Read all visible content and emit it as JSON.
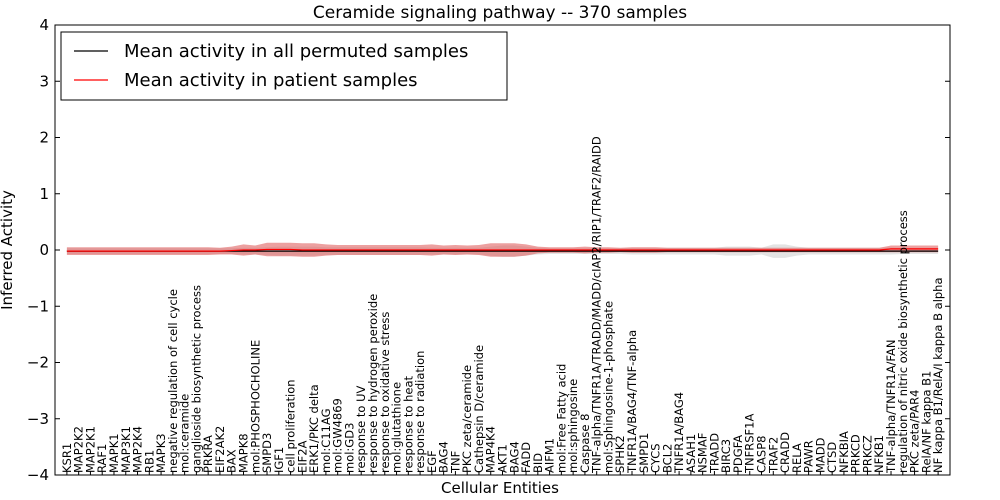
{
  "chart_data": {
    "type": "line",
    "title": "Ceramide signaling pathway -- 370 samples",
    "xlabel": "Cellular Entities",
    "ylabel": "Inferred Activity",
    "ylim": [
      -4,
      4
    ],
    "yticks": [
      "4",
      "3",
      "2",
      "1",
      "0",
      "−1",
      "−2",
      "−3",
      "−4"
    ],
    "legend_position": "top-left",
    "categories": [
      "KSR1",
      "MAP2K2",
      "MAP2K1",
      "RAF1",
      "MAPK1",
      "MAP3K1",
      "MAP2K4",
      "RB1",
      "MAPK3",
      "negative regulation of cell cycle",
      "mol:ceramide",
      "ganglioside biosynthetic process",
      "PRKRA",
      "EIF2AK2",
      "BAX",
      "MAPK8",
      "mol:PHOSPHOCHOLINE",
      "SMPD3",
      "IGF1",
      "cell proliferation",
      "EIF2A",
      "ERK1/PKC delta",
      "mol:C11AG",
      "mol:GW4869",
      "mol:GD3",
      "response to UV",
      "response to hydrogen peroxide",
      "response to oxidative stress",
      "mol:glutathione",
      "response to heat",
      "response to radiation",
      "EGF",
      "BAG4",
      "TNF",
      "PKC zeta/ceramide",
      "Cathepsin D/ceramide",
      "MAP4K4",
      "AKT1",
      "BAG4",
      "FADD",
      "BID",
      "AIFM1",
      "mol:Free Fatty acid",
      "mol:sphingosine",
      "Caspase 8",
      "TNF-alpha/TNFR1A/TRADD/MADD/cIAP2/RIP1/TRAF2/RAIDD",
      "mol:Sphingosine-1-phosphate",
      "SPHK2",
      "TNFR1A/BAG4/TNF-alpha",
      "SMPD1",
      "CYCS",
      "BCL2",
      "TNFR1A/BAG4",
      "ASAH1",
      "NSMAF",
      "TRADD",
      "BIRC3",
      "PDGFA",
      "TNFRSF1A",
      "CASP8",
      "TRAF2",
      "CRADD",
      "RELA",
      "PAWR",
      "MADD",
      "CTSD",
      "NFKBIA",
      "PRKCD",
      "PRKCZ",
      "NFKB1",
      "TNF-alpha/TNFR1A/FAN",
      "regulation of nitric oxide biosynthetic process",
      "PKC zeta/PAR4",
      "RelA/NF kappa B1",
      "NF kappa B1/RelA/I kappa B alpha"
    ],
    "series": [
      {
        "name": "Mean activity in all permuted samples",
        "color": "#000000",
        "values": [
          -0.02,
          -0.02,
          -0.02,
          -0.02,
          -0.02,
          -0.02,
          -0.02,
          -0.02,
          -0.02,
          -0.02,
          -0.02,
          -0.02,
          -0.02,
          -0.02,
          -0.02,
          -0.02,
          -0.02,
          -0.02,
          -0.02,
          -0.02,
          -0.02,
          -0.02,
          -0.02,
          -0.02,
          -0.02,
          -0.02,
          -0.02,
          -0.02,
          -0.02,
          -0.02,
          -0.02,
          -0.02,
          -0.02,
          -0.02,
          -0.02,
          -0.02,
          -0.02,
          -0.02,
          -0.02,
          -0.02,
          -0.02,
          -0.02,
          -0.02,
          -0.02,
          -0.02,
          -0.02,
          -0.02,
          -0.02,
          -0.02,
          -0.02,
          -0.02,
          -0.02,
          -0.02,
          -0.02,
          -0.02,
          -0.02,
          -0.02,
          -0.02,
          -0.02,
          -0.02,
          -0.02,
          -0.02,
          -0.02,
          -0.02,
          -0.02,
          -0.02,
          -0.02,
          -0.02,
          -0.02,
          -0.02,
          -0.02,
          -0.02,
          -0.02,
          -0.02,
          -0.02
        ],
        "spread": [
          0.05,
          0.05,
          0.05,
          0.05,
          0.05,
          0.05,
          0.05,
          0.05,
          0.05,
          0.05,
          0.05,
          0.05,
          0.05,
          0.05,
          0.05,
          0.06,
          0.06,
          0.07,
          0.08,
          0.08,
          0.08,
          0.08,
          0.07,
          0.07,
          0.07,
          0.07,
          0.07,
          0.07,
          0.07,
          0.07,
          0.07,
          0.06,
          0.06,
          0.06,
          0.06,
          0.06,
          0.08,
          0.1,
          0.1,
          0.08,
          0.06,
          0.05,
          0.05,
          0.05,
          0.05,
          0.05,
          0.05,
          0.05,
          0.06,
          0.06,
          0.06,
          0.06,
          0.06,
          0.06,
          0.06,
          0.06,
          0.08,
          0.08,
          0.08,
          0.06,
          0.12,
          0.12,
          0.08,
          0.06,
          0.06,
          0.06,
          0.06,
          0.06,
          0.06,
          0.06,
          0.06,
          0.05,
          0.05,
          0.05,
          0.05
        ]
      },
      {
        "name": "Mean activity in patient samples",
        "color": "#ff0000",
        "values": [
          -0.02,
          -0.02,
          -0.02,
          -0.02,
          -0.02,
          -0.02,
          -0.02,
          -0.02,
          -0.02,
          -0.02,
          -0.02,
          -0.02,
          -0.02,
          -0.02,
          -0.01,
          0.0,
          0.0,
          0.01,
          0.01,
          0.01,
          0.0,
          0.0,
          0.0,
          0.0,
          0.0,
          0.0,
          0.0,
          0.0,
          0.0,
          0.0,
          0.0,
          0.0,
          0.0,
          0.0,
          0.0,
          0.0,
          0.0,
          0.0,
          0.0,
          0.0,
          0.0,
          0.0,
          0.0,
          0.0,
          0.0,
          0.0,
          0.0,
          0.0,
          0.0,
          0.0,
          0.0,
          0.0,
          0.0,
          0.0,
          0.0,
          0.0,
          0.0,
          0.0,
          0.0,
          0.0,
          0.0,
          0.0,
          0.0,
          0.0,
          0.0,
          0.0,
          0.0,
          0.0,
          0.0,
          0.0,
          0.02,
          0.02,
          0.02,
          0.02,
          0.02
        ],
        "spread": [
          0.07,
          0.07,
          0.07,
          0.07,
          0.07,
          0.07,
          0.07,
          0.07,
          0.07,
          0.07,
          0.07,
          0.07,
          0.07,
          0.06,
          0.07,
          0.1,
          0.08,
          0.12,
          0.12,
          0.12,
          0.12,
          0.12,
          0.1,
          0.09,
          0.09,
          0.09,
          0.09,
          0.09,
          0.09,
          0.09,
          0.09,
          0.1,
          0.08,
          0.09,
          0.08,
          0.09,
          0.12,
          0.12,
          0.12,
          0.1,
          0.06,
          0.05,
          0.05,
          0.05,
          0.06,
          0.05,
          0.05,
          0.04,
          0.05,
          0.05,
          0.05,
          0.04,
          0.04,
          0.04,
          0.04,
          0.04,
          0.04,
          0.04,
          0.04,
          0.04,
          0.04,
          0.04,
          0.04,
          0.04,
          0.04,
          0.04,
          0.04,
          0.04,
          0.04,
          0.04,
          0.06,
          0.06,
          0.06,
          0.06,
          0.06
        ]
      }
    ]
  }
}
